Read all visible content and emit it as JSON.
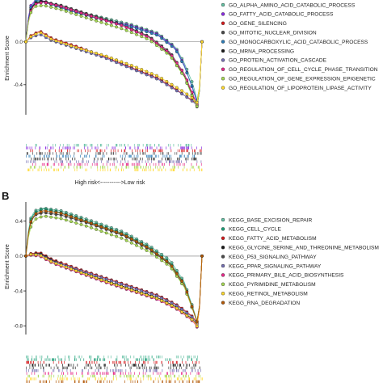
{
  "colors": {
    "palette": [
      "#66c2a5",
      "#8a2be2",
      "#d7191c",
      "#4a4a4a",
      "#2c7bb6",
      "#1b1b1b",
      "#7570b3",
      "#e7298a",
      "#a6d854",
      "#ffd92f",
      "#b35806",
      "#1b9e77"
    ],
    "axis": "#000000",
    "zero_line": "#777777"
  },
  "chart_data": [
    {
      "type": "line",
      "panel_label": "",
      "ylabel": "Enrichment Score",
      "xlabel": "High risk<----------->Low risk",
      "yticks": [
        "0.0",
        "-0.4"
      ],
      "ytick_values": [
        0.0,
        -0.4
      ],
      "ylim": [
        -0.68,
        0.42
      ],
      "xlim": [
        0,
        100
      ],
      "legend_position": "right",
      "series": [
        {
          "name": "GO_ALPHA_AMINO_ACID_CATABOLIC_PROCESS",
          "color": "#66c2a5",
          "x": [
            0,
            2,
            6,
            12,
            25,
            40,
            60,
            75,
            85,
            90,
            95,
            98,
            100
          ],
          "values": [
            0.0,
            0.3,
            0.38,
            0.36,
            0.3,
            0.24,
            0.16,
            0.08,
            -0.05,
            -0.2,
            -0.4,
            -0.6,
            0.0
          ]
        },
        {
          "name": "GO_FATTY_ACID_CATABOLIC_PROCESS",
          "color": "#8a2be2",
          "x": [
            0,
            2,
            6,
            12,
            25,
            40,
            60,
            75,
            85,
            90,
            95,
            98,
            100
          ],
          "values": [
            0.0,
            0.32,
            0.4,
            0.37,
            0.3,
            0.22,
            0.15,
            0.07,
            -0.06,
            -0.22,
            -0.45,
            -0.62,
            0.0
          ]
        },
        {
          "name": "GO_GENE_SILENCING",
          "color": "#d7191c",
          "x": [
            0,
            3,
            8,
            15,
            30,
            45,
            60,
            75,
            85,
            90,
            95,
            98,
            100
          ],
          "values": [
            0.0,
            0.06,
            0.1,
            0.03,
            -0.05,
            -0.14,
            -0.24,
            -0.34,
            -0.44,
            -0.5,
            -0.55,
            -0.6,
            0.0
          ]
        },
        {
          "name": "GO_MITOTIC_NUCLEAR_DIVISION",
          "color": "#4a4a4a",
          "x": [
            0,
            2,
            5,
            10,
            20,
            35,
            55,
            70,
            82,
            90,
            95,
            98,
            100
          ],
          "values": [
            0.0,
            0.28,
            0.36,
            0.37,
            0.34,
            0.26,
            0.16,
            0.05,
            -0.1,
            -0.3,
            -0.5,
            -0.63,
            0.0
          ]
        },
        {
          "name": "GO_MONOCARBOXYLIC_ACID_CATABOLIC_PROCESS",
          "color": "#2c7bb6",
          "x": [
            0,
            2,
            6,
            12,
            25,
            40,
            60,
            75,
            85,
            90,
            95,
            98,
            100
          ],
          "values": [
            0.0,
            0.3,
            0.39,
            0.36,
            0.29,
            0.22,
            0.14,
            0.06,
            -0.07,
            -0.23,
            -0.44,
            -0.6,
            0.0
          ]
        },
        {
          "name": "GO_MRNA_PROCESSING",
          "color": "#1b1b1b",
          "x": [
            0,
            2,
            5,
            10,
            20,
            35,
            55,
            70,
            82,
            90,
            95,
            98,
            100
          ],
          "values": [
            0.0,
            0.27,
            0.36,
            0.38,
            0.33,
            0.25,
            0.15,
            0.04,
            -0.12,
            -0.32,
            -0.52,
            -0.64,
            0.0
          ]
        },
        {
          "name": "GO_PROTEIN_ACTIVATION_CASCADE",
          "color": "#7570b3",
          "x": [
            0,
            3,
            8,
            15,
            30,
            45,
            60,
            75,
            85,
            90,
            95,
            98,
            100
          ],
          "values": [
            0.0,
            0.04,
            0.07,
            0.01,
            -0.07,
            -0.15,
            -0.25,
            -0.35,
            -0.45,
            -0.5,
            -0.56,
            -0.61,
            0.0
          ]
        },
        {
          "name": "GO_REGULATION_OF_CELL_CYCLE_PHASE_TRANSITION",
          "color": "#e7298a",
          "x": [
            0,
            2,
            5,
            10,
            20,
            35,
            55,
            70,
            82,
            90,
            95,
            98,
            100
          ],
          "values": [
            0.0,
            0.26,
            0.35,
            0.37,
            0.33,
            0.25,
            0.15,
            0.04,
            -0.11,
            -0.3,
            -0.5,
            -0.62,
            0.0
          ]
        },
        {
          "name": "GO_REGULATION_OF_GENE_EXPRESSION_EPIGENETIC",
          "color": "#a6d854",
          "x": [
            0,
            2,
            5,
            10,
            20,
            35,
            55,
            70,
            82,
            90,
            95,
            98,
            100
          ],
          "values": [
            0.0,
            0.25,
            0.33,
            0.34,
            0.3,
            0.22,
            0.12,
            0.02,
            -0.13,
            -0.33,
            -0.53,
            -0.63,
            0.0
          ]
        },
        {
          "name": "GO_REGULATION_OF_LIPOPROTEIN_LIPASE_ACTIVITY",
          "color": "#ffd92f",
          "x": [
            0,
            3,
            8,
            15,
            30,
            45,
            60,
            75,
            85,
            90,
            95,
            98,
            100
          ],
          "values": [
            0.0,
            0.05,
            0.09,
            0.02,
            -0.06,
            -0.13,
            -0.22,
            -0.32,
            -0.42,
            -0.47,
            -0.53,
            -0.58,
            0.0
          ]
        }
      ]
    },
    {
      "type": "line",
      "panel_label": "B",
      "ylabel": "Enrichment Score",
      "xlabel": "",
      "yticks": [
        "0.4",
        "0.0",
        "-0.4",
        "-0.8"
      ],
      "ytick_values": [
        0.4,
        0.0,
        -0.4,
        -0.8
      ],
      "ylim": [
        -0.9,
        0.62
      ],
      "xlim": [
        0,
        100
      ],
      "legend_position": "right",
      "series": [
        {
          "name": "KEGG_BASE_EXCISION_REPAIR",
          "color": "#66c2a5",
          "x": [
            0,
            2,
            5,
            10,
            20,
            35,
            55,
            70,
            82,
            90,
            95,
            98,
            100
          ],
          "values": [
            0.0,
            0.4,
            0.52,
            0.55,
            0.52,
            0.42,
            0.28,
            0.12,
            -0.05,
            -0.3,
            -0.6,
            -0.8,
            0.0
          ]
        },
        {
          "name": "KEGG_CELL_CYCLE",
          "color": "#1b9e77",
          "x": [
            0,
            2,
            5,
            10,
            20,
            35,
            55,
            70,
            82,
            90,
            95,
            98,
            100
          ],
          "values": [
            0.0,
            0.38,
            0.5,
            0.54,
            0.5,
            0.4,
            0.26,
            0.1,
            -0.08,
            -0.32,
            -0.62,
            -0.82,
            0.0
          ]
        },
        {
          "name": "KEGG_FATTY_ACID_METABOLISM",
          "color": "#d7191c",
          "x": [
            0,
            3,
            8,
            15,
            30,
            45,
            60,
            75,
            85,
            90,
            95,
            98,
            100
          ],
          "values": [
            0.0,
            0.03,
            0.04,
            -0.04,
            -0.15,
            -0.25,
            -0.35,
            -0.45,
            -0.55,
            -0.62,
            -0.7,
            -0.8,
            0.0
          ]
        },
        {
          "name": "KEGG_GLYCINE_SERINE_AND_THREONINE_METABOLISM",
          "color": "#1b1b1b",
          "x": [
            0,
            3,
            8,
            15,
            30,
            45,
            60,
            75,
            85,
            90,
            95,
            98,
            100
          ],
          "values": [
            0.0,
            0.02,
            0.03,
            -0.05,
            -0.17,
            -0.28,
            -0.38,
            -0.48,
            -0.58,
            -0.65,
            -0.73,
            -0.83,
            0.0
          ]
        },
        {
          "name": "KEGG_P53_SIGNALING_PATHWAY",
          "color": "#4a4a4a",
          "x": [
            0,
            2,
            5,
            10,
            20,
            35,
            55,
            70,
            82,
            90,
            95,
            98,
            100
          ],
          "values": [
            0.0,
            0.35,
            0.47,
            0.5,
            0.47,
            0.38,
            0.24,
            0.08,
            -0.1,
            -0.35,
            -0.63,
            -0.8,
            0.0
          ]
        },
        {
          "name": "KEGG_PPAR_SIGNALING_PATHWAY",
          "color": "#7570b3",
          "x": [
            0,
            3,
            8,
            15,
            30,
            45,
            60,
            75,
            85,
            90,
            95,
            98,
            100
          ],
          "values": [
            0.0,
            0.02,
            0.02,
            -0.06,
            -0.16,
            -0.26,
            -0.36,
            -0.46,
            -0.56,
            -0.63,
            -0.71,
            -0.81,
            0.0
          ]
        },
        {
          "name": "KEGG_PRIMARY_BILE_ACID_BIOSYNTHESIS",
          "color": "#e7298a",
          "x": [
            0,
            3,
            8,
            15,
            30,
            45,
            60,
            75,
            85,
            90,
            95,
            98,
            100
          ],
          "values": [
            0.0,
            0.01,
            0.0,
            -0.08,
            -0.19,
            -0.3,
            -0.4,
            -0.5,
            -0.6,
            -0.67,
            -0.75,
            -0.84,
            0.0
          ]
        },
        {
          "name": "KEGG_PYRIMIDINE_METABOLISM",
          "color": "#a6d854",
          "x": [
            0,
            2,
            5,
            10,
            20,
            35,
            55,
            70,
            82,
            90,
            95,
            98,
            100
          ],
          "values": [
            0.0,
            0.3,
            0.42,
            0.46,
            0.43,
            0.34,
            0.2,
            0.05,
            -0.12,
            -0.36,
            -0.63,
            -0.8,
            0.0
          ]
        },
        {
          "name": "KEGG_RETINOL_METABOLISM",
          "color": "#ffd92f",
          "x": [
            0,
            3,
            8,
            15,
            30,
            45,
            60,
            75,
            85,
            90,
            95,
            98,
            100
          ],
          "values": [
            0.0,
            0.02,
            0.01,
            -0.07,
            -0.18,
            -0.29,
            -0.39,
            -0.49,
            -0.59,
            -0.66,
            -0.74,
            -0.83,
            0.0
          ]
        },
        {
          "name": "KEGG_RNA_DEGRADATION",
          "color": "#b35806",
          "x": [
            0,
            2,
            5,
            10,
            20,
            35,
            55,
            70,
            82,
            90,
            95,
            98,
            100
          ],
          "values": [
            0.0,
            0.36,
            0.48,
            0.52,
            0.49,
            0.39,
            0.25,
            0.09,
            -0.09,
            -0.33,
            -0.62,
            -0.81,
            0.0
          ]
        }
      ]
    }
  ]
}
